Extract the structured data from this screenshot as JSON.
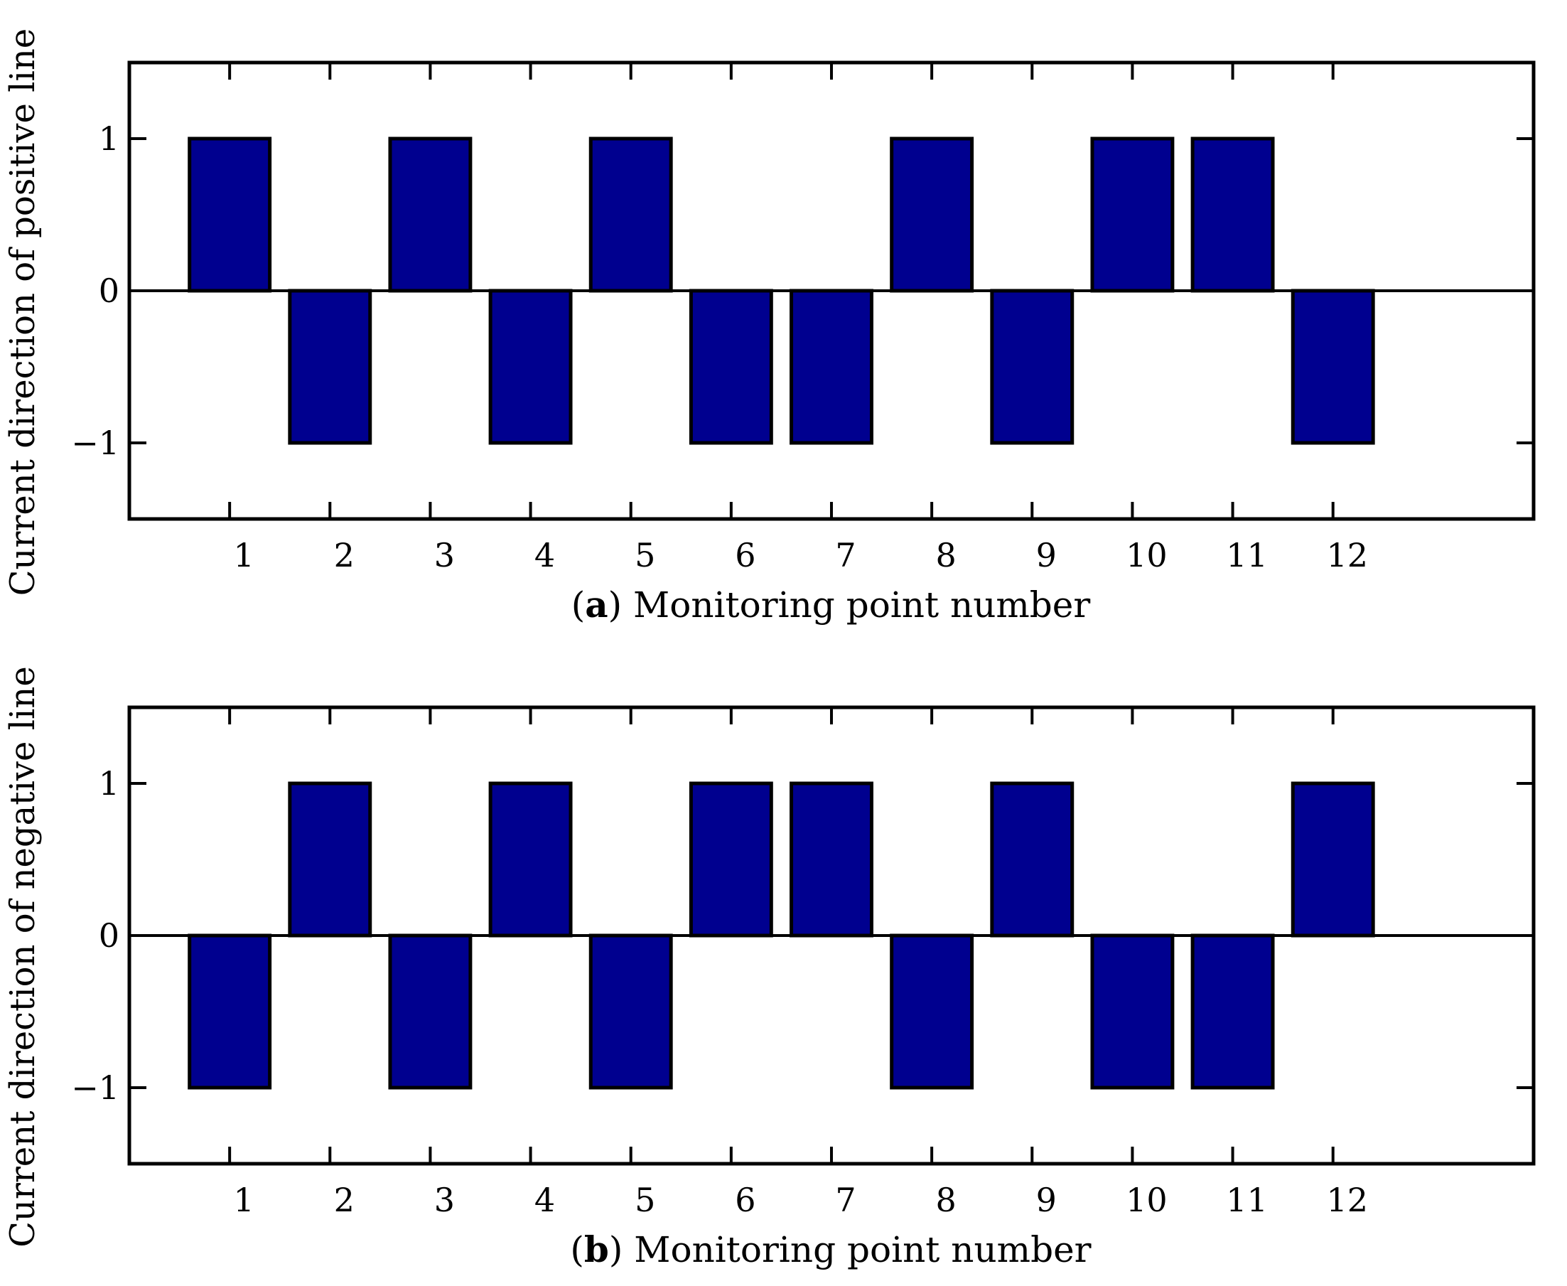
{
  "chart_data": [
    {
      "type": "bar",
      "categories": [
        "1",
        "2",
        "3",
        "4",
        "5",
        "6",
        "7",
        "8",
        "9",
        "10",
        "11",
        "12"
      ],
      "values": [
        1,
        -1,
        1,
        -1,
        1,
        -1,
        -1,
        1,
        -1,
        1,
        1,
        -1
      ],
      "xlabel_prefix": "a",
      "xlabel": "Monitoring point number",
      "ylabel": "Current direction of positive line",
      "yticks": [
        "−1",
        "0",
        "1"
      ],
      "ylim": [
        -1.5,
        1.5
      ],
      "xlim": [
        0,
        14
      ],
      "grid": false,
      "bar_color": "#00008f"
    },
    {
      "type": "bar",
      "categories": [
        "1",
        "2",
        "3",
        "4",
        "5",
        "6",
        "7",
        "8",
        "9",
        "10",
        "11",
        "12"
      ],
      "values": [
        -1,
        1,
        -1,
        1,
        -1,
        1,
        1,
        -1,
        1,
        -1,
        -1,
        1
      ],
      "xlabel_prefix": "b",
      "xlabel": "Monitoring point number",
      "ylabel": "Current direction of negative line",
      "yticks": [
        "−1",
        "0",
        "1"
      ],
      "ylim": [
        -1.5,
        1.5
      ],
      "xlim": [
        0,
        14
      ],
      "grid": false,
      "bar_color": "#00008f"
    }
  ]
}
